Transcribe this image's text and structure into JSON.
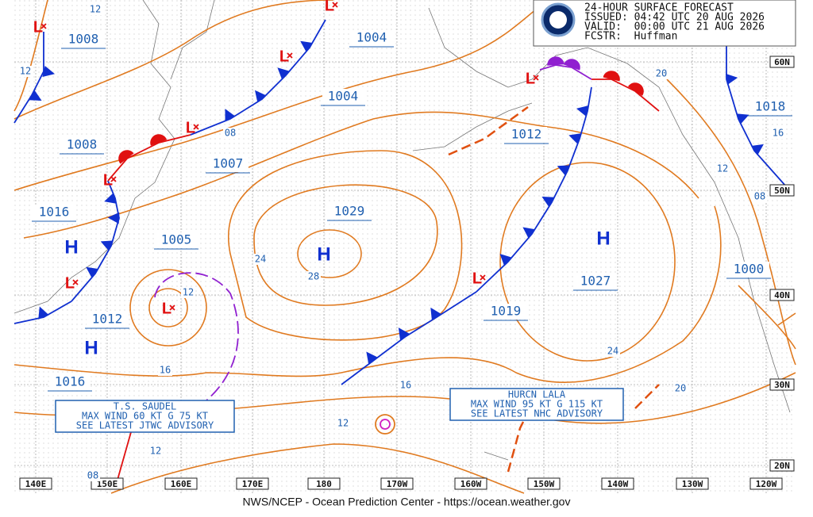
{
  "header": {
    "lines": [
      "24-HOUR SURFACE FORECAST",
      "ISSUED: 04:42 UTC 20 AUG 2026",
      "VALID:  00:00 UTC 21 AUG 2026",
      "FCSTR:  Huffman"
    ]
  },
  "footer": "NWS/NCEP - Ocean Prediction Center - https://ocean.weather.gov",
  "longitudes": [
    "140E",
    "150E",
    "160E",
    "170E",
    "180",
    "170W",
    "160W",
    "150W",
    "140W",
    "130W",
    "120W"
  ],
  "latitudes": [
    "60N",
    "50N",
    "40N",
    "30N",
    "20N"
  ],
  "pressure_labels": [
    "1008",
    "1004",
    "1004",
    "1008",
    "1007",
    "1016",
    "1029",
    "1012",
    "1018",
    "1005",
    "1027",
    "1000",
    "1012",
    "1019",
    "1016"
  ],
  "isobar_labels": [
    "12",
    "12",
    "08",
    "20",
    "16",
    "12",
    "08",
    "24",
    "28",
    "12",
    "16",
    "16",
    "24",
    "20",
    "12",
    "12",
    "08"
  ],
  "highs": [
    "H",
    "H",
    "H",
    "H"
  ],
  "lows": [
    "L",
    "L",
    "L",
    "L",
    "L",
    "L",
    "L",
    "L",
    "L"
  ],
  "advisories": [
    {
      "lines": [
        "T.S. SAUDEL",
        "MAX WIND 60 KT G 75 KT",
        "SEE LATEST JTWC ADVISORY"
      ]
    },
    {
      "lines": [
        "HURCN LALA",
        "MAX WIND 95 KT G 115 KT",
        "SEE LATEST NHC ADVISORY"
      ]
    }
  ]
}
